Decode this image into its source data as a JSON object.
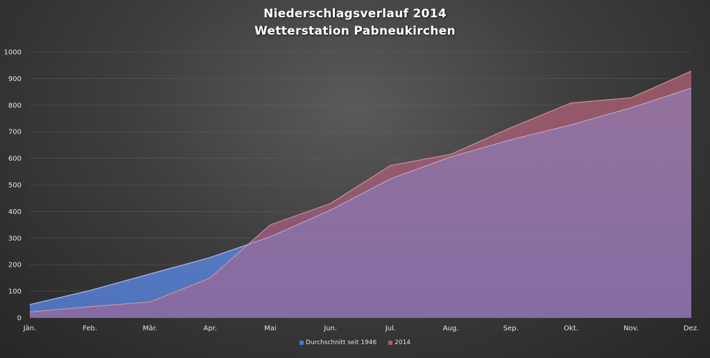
{
  "chart_data": {
    "type": "area",
    "title": "Niederschlagsverlauf 2014",
    "subtitle": "Wetterstation Pabneukirchen",
    "categories": [
      "Jän.",
      "Feb.",
      "Mär.",
      "Apr.",
      "Mai",
      "Jun.",
      "Jul.",
      "Aug.",
      "Sep.",
      "Okt.",
      "Nov.",
      "Dez."
    ],
    "yticks": [
      0,
      100,
      200,
      300,
      400,
      500,
      600,
      700,
      800,
      900,
      1000
    ],
    "ylim": [
      0,
      1000
    ],
    "grid": true,
    "legend_position": "bottom",
    "series": [
      {
        "name": "Durchschnitt seit 1946",
        "color": "#3d7fd9",
        "values": [
          50,
          103,
          165,
          227,
          305,
          405,
          523,
          605,
          670,
          726,
          790,
          864
        ]
      },
      {
        "name": "2014",
        "color": "#a05060",
        "values": [
          22,
          42,
          60,
          150,
          350,
          430,
          573,
          615,
          715,
          808,
          828,
          928
        ]
      }
    ]
  },
  "legend": {
    "items": [
      {
        "label": "Durchschnitt seit 1946",
        "color": "#3d7fd9"
      },
      {
        "label": "2014",
        "color": "#b85a5a"
      }
    ]
  }
}
